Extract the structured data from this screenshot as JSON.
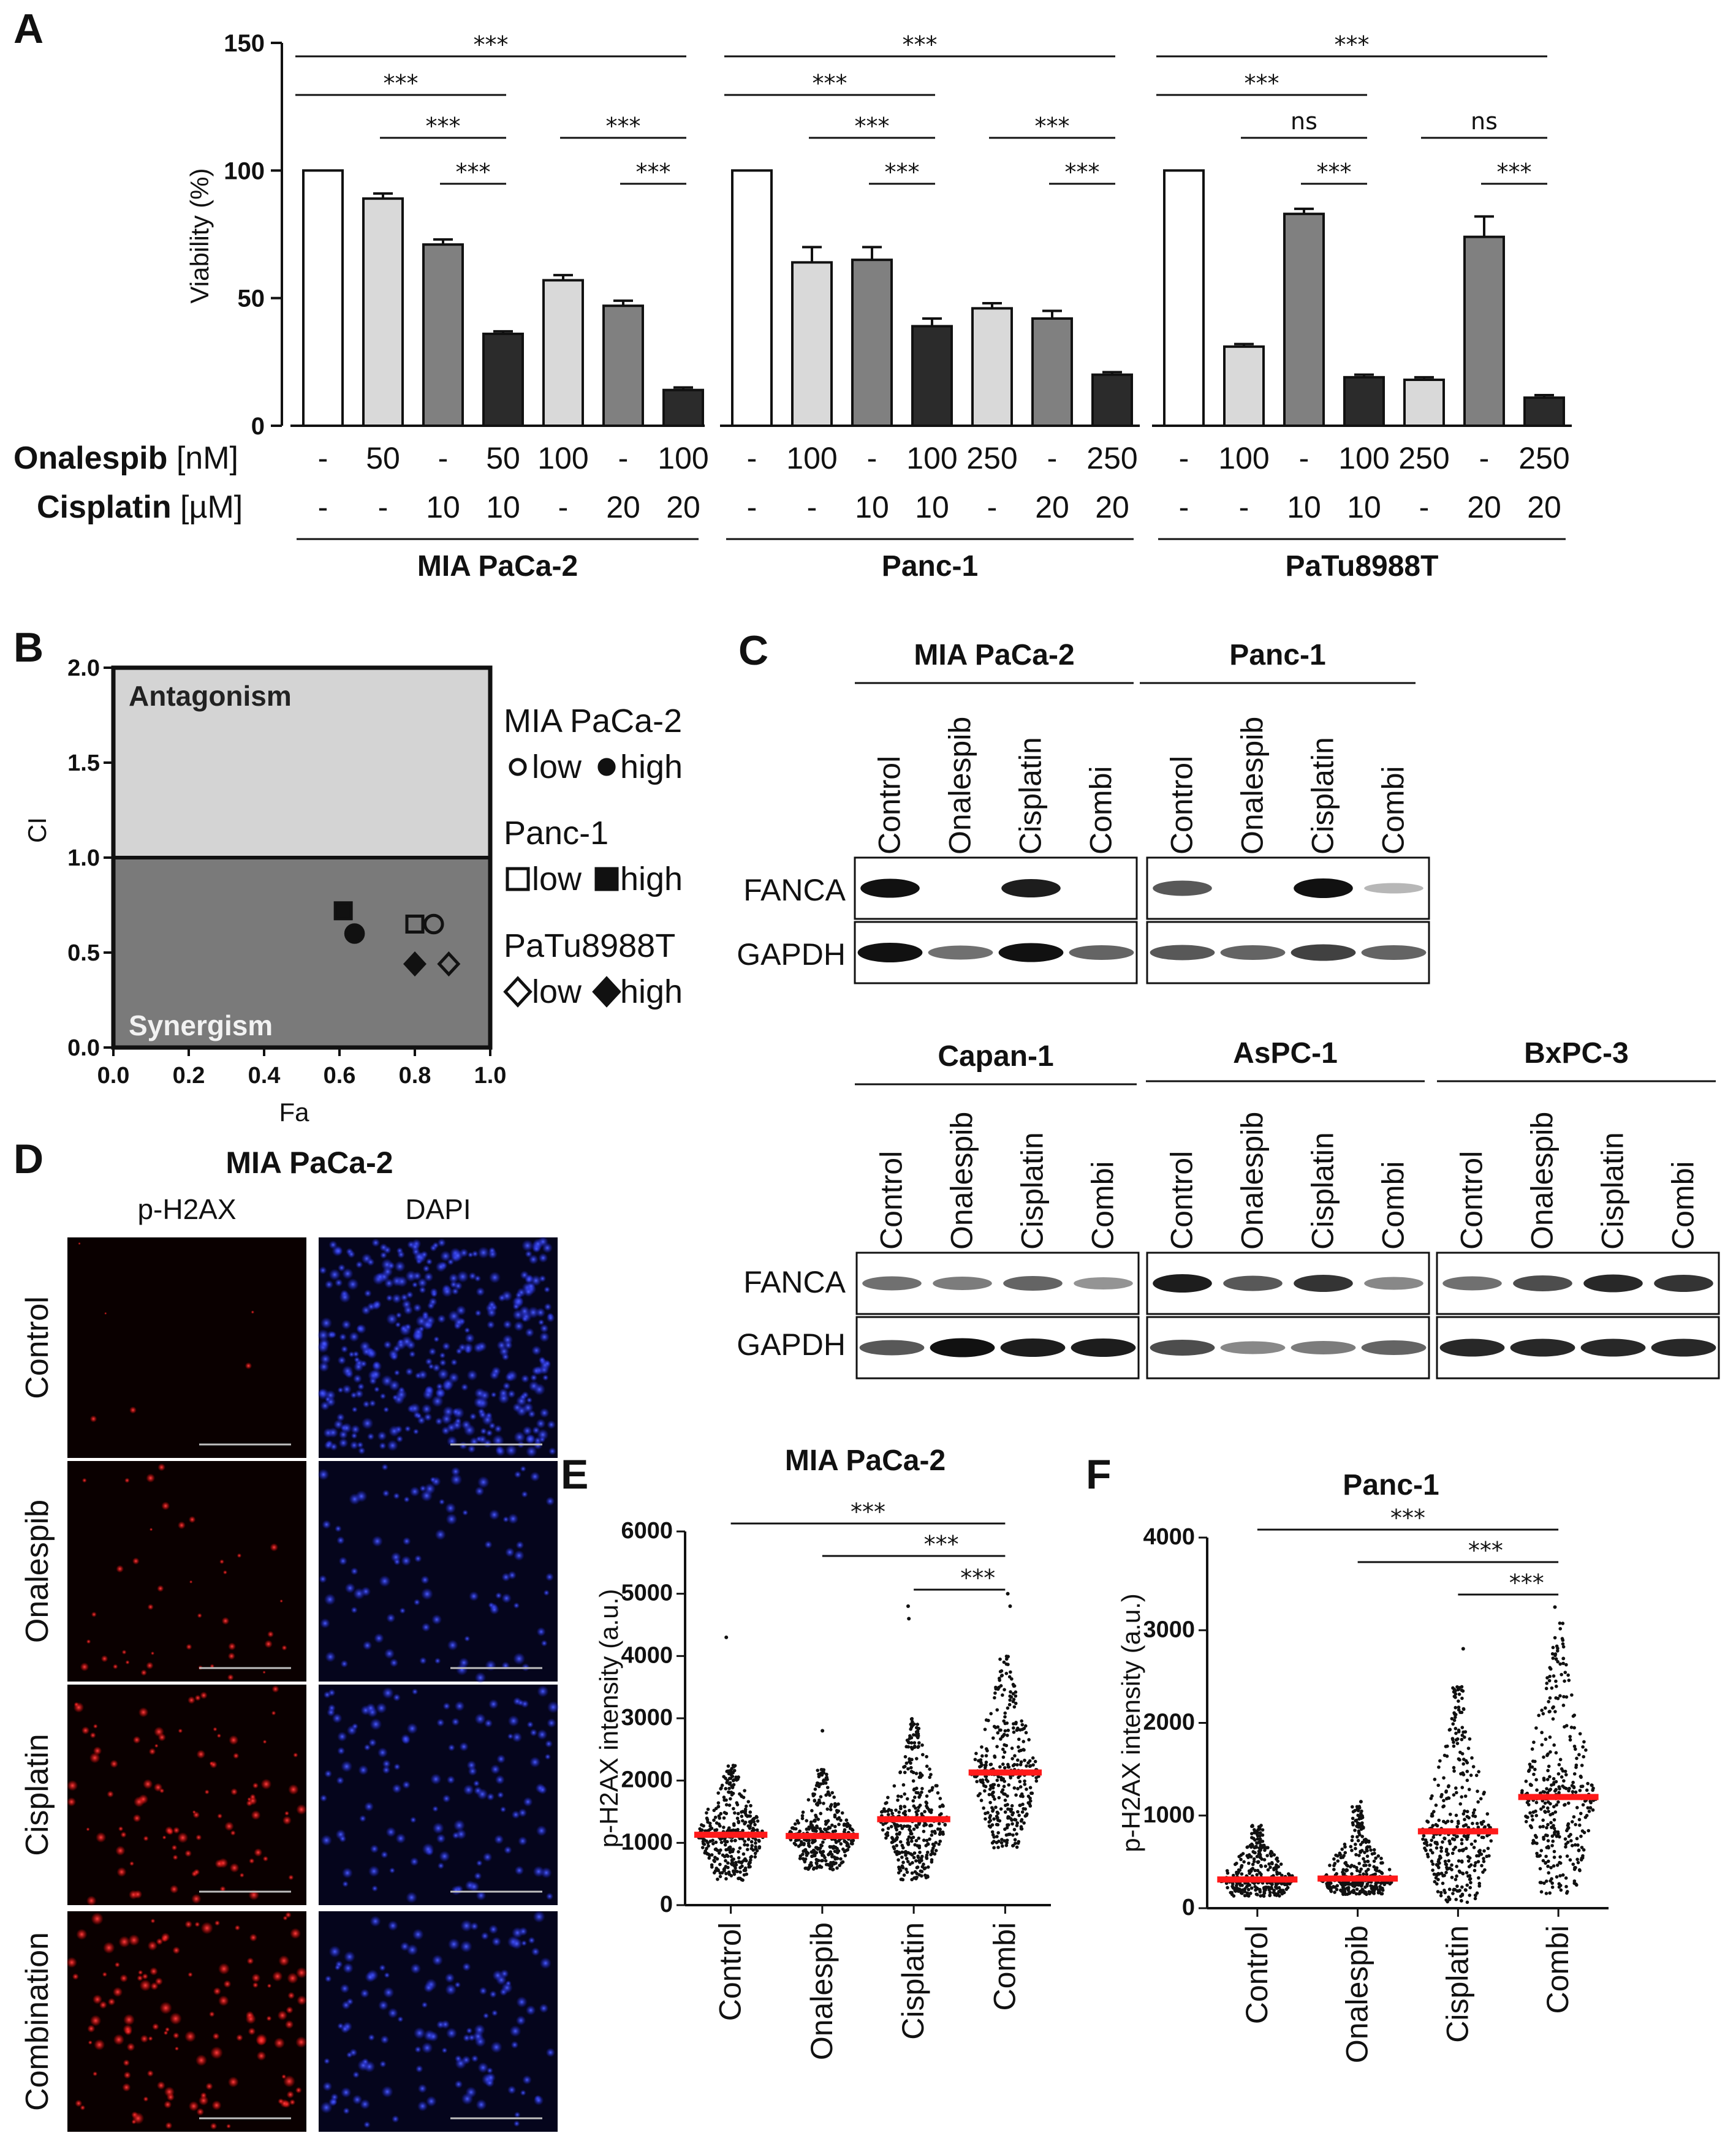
{
  "panel_labels": {
    "A": "A",
    "B": "B",
    "C": "C",
    "D": "D",
    "E": "E",
    "F": "F"
  },
  "panelA": {
    "ylabel": "Viability (%)",
    "yticks": [
      "0",
      "50",
      "100",
      "150"
    ],
    "row_labels": {
      "onalespib": "Onalespib",
      "onalespib_unit": "[nM]",
      "cisplatin": "Cisplatin",
      "cisplatin_unit": "[µM]"
    },
    "groups": [
      {
        "name": "MIA PaCa-2",
        "onalespib": [
          "-",
          "50",
          "-",
          "50",
          "100",
          "-",
          "100"
        ],
        "cisplatin": [
          "-",
          "-",
          "10",
          "10",
          "-",
          "20",
          "20"
        ],
        "sig": [
          {
            "a": 0,
            "b": 6,
            "t": "***"
          },
          {
            "a": 0,
            "b": 3,
            "t": "***"
          },
          {
            "a": 1,
            "b": 3,
            "t": "***"
          },
          {
            "a": 2,
            "b": 3,
            "t": "***"
          },
          {
            "a": 4,
            "b": 6,
            "t": "***"
          },
          {
            "a": 5,
            "b": 6,
            "t": "***"
          }
        ]
      },
      {
        "name": "Panc-1",
        "onalespib": [
          "-",
          "100",
          "-",
          "100",
          "250",
          "-",
          "250"
        ],
        "cisplatin": [
          "-",
          "-",
          "10",
          "10",
          "-",
          "20",
          "20"
        ],
        "sig": [
          {
            "a": 0,
            "b": 6,
            "t": "***"
          },
          {
            "a": 0,
            "b": 3,
            "t": "***"
          },
          {
            "a": 1,
            "b": 3,
            "t": "***"
          },
          {
            "a": 2,
            "b": 3,
            "t": "***"
          },
          {
            "a": 4,
            "b": 6,
            "t": "***"
          },
          {
            "a": 5,
            "b": 6,
            "t": "***"
          }
        ]
      },
      {
        "name": "PaTu8988T",
        "onalespib": [
          "-",
          "100",
          "-",
          "100",
          "250",
          "-",
          "250"
        ],
        "cisplatin": [
          "-",
          "-",
          "10",
          "10",
          "-",
          "20",
          "20"
        ],
        "sig": [
          {
            "a": 0,
            "b": 6,
            "t": "***"
          },
          {
            "a": 0,
            "b": 3,
            "t": "***"
          },
          {
            "a": 1,
            "b": 3,
            "t": "ns"
          },
          {
            "a": 2,
            "b": 3,
            "t": "***"
          },
          {
            "a": 4,
            "b": 6,
            "t": "ns"
          },
          {
            "a": 5,
            "b": 6,
            "t": "***"
          }
        ]
      }
    ]
  },
  "panelB": {
    "xlabel": "Fa",
    "ylabel": "CI",
    "xticks": [
      "0.0",
      "0.2",
      "0.4",
      "0.6",
      "0.8",
      "1.0"
    ],
    "yticks": [
      "0.0",
      "0.5",
      "1.0",
      "1.5",
      "2.0"
    ],
    "region_top": "Antagonism",
    "region_bottom": "Synergism",
    "legend": [
      {
        "name": "MIA PaCa-2",
        "low": "low",
        "high": "high"
      },
      {
        "name": "Panc-1",
        "low": "low",
        "high": "high"
      },
      {
        "name": "PaTu8988T",
        "low": "low",
        "high": "high"
      }
    ]
  },
  "panelC": {
    "top_groups": [
      "MIA PaCa-2",
      "Panc-1"
    ],
    "bottom_groups": [
      "Capan-1",
      "AsPC-1",
      "BxPC-3"
    ],
    "lanes": [
      "Control",
      "Onalespib",
      "Cisplatin",
      "Combi"
    ],
    "rows": [
      "FANCA",
      "GAPDH"
    ]
  },
  "panelD": {
    "title": "MIA PaCa-2",
    "channels": [
      "p-H2AX",
      "DAPI"
    ],
    "conditions": [
      "Control",
      "Onalespib",
      "Cisplatin",
      "Combination"
    ]
  },
  "panelE": {
    "title": "MIA PaCa-2",
    "ylabel": "p-H2AX intensity (a.u.)"
  },
  "panelF": {
    "title": "Panc-1",
    "ylabel": "p-H2AX intensity (a.u.)"
  },
  "chart_data": [
    {
      "type": "bar",
      "title": "",
      "ylabel": "Viability (%)",
      "ylim": [
        0,
        150
      ],
      "categories": [
        "MIA PaCa-2 1",
        "MIA PaCa-2 2",
        "MIA PaCa-2 3",
        "MIA PaCa-2 4",
        "MIA PaCa-2 5",
        "MIA PaCa-2 6",
        "MIA PaCa-2 7",
        "Panc-1 1",
        "Panc-1 2",
        "Panc-1 3",
        "Panc-1 4",
        "Panc-1 5",
        "Panc-1 6",
        "Panc-1 7",
        "PaTu8988T 1",
        "PaTu8988T 2",
        "PaTu8988T 3",
        "PaTu8988T 4",
        "PaTu8988T 5",
        "PaTu8988T 6",
        "PaTu8988T 7"
      ],
      "values": [
        100,
        89,
        71,
        36,
        57,
        47,
        14,
        100,
        64,
        65,
        39,
        46,
        42,
        20,
        100,
        31,
        83,
        19,
        18,
        74,
        11
      ],
      "errors": [
        0,
        2,
        2,
        1,
        2,
        2,
        1,
        0,
        6,
        5,
        3,
        2,
        3,
        1,
        0,
        1,
        2,
        1,
        1,
        8,
        1
      ],
      "fills": [
        "#ffffff",
        "#d9d9d9",
        "#808080",
        "#2b2b2b",
        "#d9d9d9",
        "#808080",
        "#2b2b2b",
        "#ffffff",
        "#d9d9d9",
        "#808080",
        "#2b2b2b",
        "#d9d9d9",
        "#808080",
        "#2b2b2b",
        "#ffffff",
        "#d9d9d9",
        "#808080",
        "#2b2b2b",
        "#d9d9d9",
        "#808080",
        "#2b2b2b"
      ]
    },
    {
      "type": "scatter",
      "xlabel": "Fa",
      "ylabel": "CI",
      "xlim": [
        0,
        1
      ],
      "ylim": [
        0,
        2
      ],
      "series": [
        {
          "name": "MIA PaCa-2 low",
          "marker": "circle-open",
          "x": [
            0.85
          ],
          "y": [
            0.65
          ]
        },
        {
          "name": "MIA PaCa-2 high",
          "marker": "circle-filled",
          "x": [
            0.64
          ],
          "y": [
            0.6
          ]
        },
        {
          "name": "Panc-1 low",
          "marker": "square-open",
          "x": [
            0.8
          ],
          "y": [
            0.65
          ]
        },
        {
          "name": "Panc-1 high",
          "marker": "square-filled",
          "x": [
            0.61
          ],
          "y": [
            0.72
          ]
        },
        {
          "name": "PaTu8988T low",
          "marker": "diamond-open",
          "x": [
            0.89
          ],
          "y": [
            0.44
          ]
        },
        {
          "name": "PaTu8988T high",
          "marker": "diamond-filled",
          "x": [
            0.8
          ],
          "y": [
            0.44
          ]
        }
      ]
    },
    {
      "type": "scatter",
      "title": "MIA PaCa-2",
      "ylabel": "p-H2AX intensity (a.u.)",
      "ylim": [
        0,
        6000
      ],
      "yticks": [
        "0",
        "1000",
        "2000",
        "3000",
        "4000",
        "5000",
        "6000"
      ],
      "categories": [
        "Control",
        "Onalespib",
        "Cisplatin",
        "Combi"
      ],
      "medians": [
        1130,
        1110,
        1380,
        2130
      ],
      "spreads": [
        [
          400,
          2300
        ],
        [
          550,
          2200
        ],
        [
          400,
          3000
        ],
        [
          900,
          4000
        ]
      ],
      "outliers": [
        [
          4300
        ],
        [
          2800
        ],
        [
          4800,
          4600
        ],
        [
          5000,
          4800
        ]
      ],
      "sig": [
        {
          "a": 0,
          "b": 3,
          "t": "***"
        },
        {
          "a": 1,
          "b": 3,
          "t": "***"
        },
        {
          "a": 2,
          "b": 3,
          "t": "***"
        }
      ]
    },
    {
      "type": "scatter",
      "title": "Panc-1",
      "ylabel": "p-H2AX intensity (a.u.)",
      "ylim": [
        0,
        4000
      ],
      "yticks": [
        "0",
        "1000",
        "2000",
        "3000",
        "4000"
      ],
      "categories": [
        "Control",
        "Onalespib",
        "Cisplatin",
        "Combi"
      ],
      "medians": [
        310,
        320,
        830,
        1200
      ],
      "spreads": [
        [
          130,
          900
        ],
        [
          150,
          1100
        ],
        [
          60,
          2400
        ],
        [
          150,
          3100
        ]
      ],
      "outliers": [
        [],
        [
          1150
        ],
        [
          2800
        ],
        [
          3250
        ]
      ],
      "sig": [
        {
          "a": 0,
          "b": 3,
          "t": "***"
        },
        {
          "a": 1,
          "b": 3,
          "t": "***"
        },
        {
          "a": 2,
          "b": 3,
          "t": "***"
        }
      ]
    }
  ]
}
